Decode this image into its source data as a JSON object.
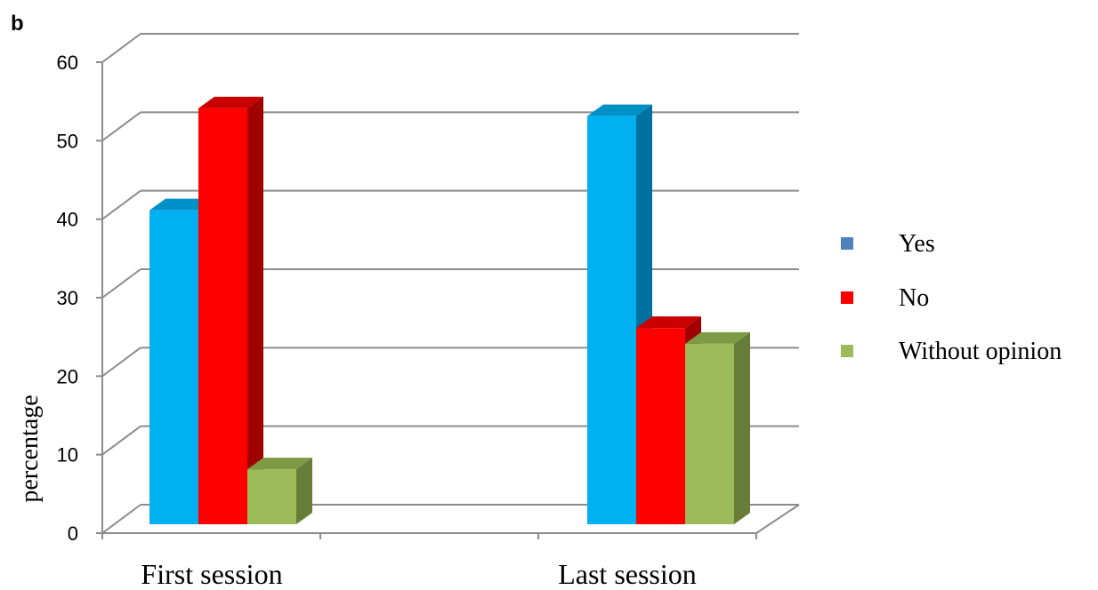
{
  "panel_label": "b",
  "colors": {
    "Yes": {
      "front": "#00B0F0",
      "side": "#0070A0",
      "top": "#0090C8",
      "legend": "#4F81BD"
    },
    "No": {
      "front": "#FF0000",
      "side": "#A00000",
      "top": "#C80000",
      "legend": "#FF0000"
    },
    "Without opinion": {
      "front": "#9BBB59",
      "side": "#687C3A",
      "top": "#7D9A44",
      "legend": "#9BBB59"
    },
    "grid": "#8C8C8C",
    "axis": "#8C8C8C"
  },
  "chart_data": {
    "type": "bar",
    "style": "3d-clustered",
    "title": "",
    "xlabel": "",
    "ylabel": "percentage",
    "ylim": [
      0,
      60
    ],
    "yticks": [
      0,
      10,
      20,
      30,
      40,
      50,
      60
    ],
    "grid": true,
    "legend_position": "right",
    "categories": [
      "First session",
      "Last session"
    ],
    "series": [
      {
        "name": "Yes",
        "values": [
          40,
          52
        ]
      },
      {
        "name": "No",
        "values": [
          53,
          25
        ]
      },
      {
        "name": "Without opinion",
        "values": [
          7,
          23
        ]
      }
    ]
  }
}
